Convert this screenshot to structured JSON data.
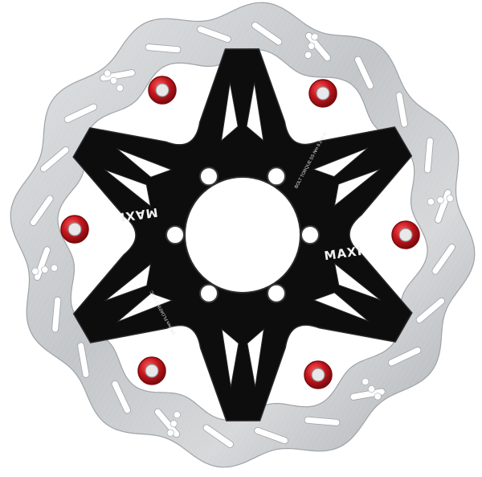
{
  "product": {
    "brand_logo_text": "MAXI",
    "small_print_bolt_torque": "BOLT TORQUE 5S·Nm 6.2 N.m",
    "small_print_model": "160mm FLOATING DISC"
  },
  "colors": {
    "background": "#ffffff",
    "rotor_steel": "#c9cbcd",
    "rotor_steel_dark": "#9fa3a6",
    "spider": "#0d0d0e",
    "spider_edge": "#2a2a2c",
    "rivet_red": "#c4161c",
    "rivet_red_dark": "#7a0b0f",
    "logo_text": "#f2f2f2"
  },
  "components": {
    "rotor_ring": "stainless steel wavy brake rotor",
    "spider": "black anodized six-arm carrier",
    "rivets": "six red floating rivets",
    "bolt_holes": "six mounting bolt holes"
  }
}
